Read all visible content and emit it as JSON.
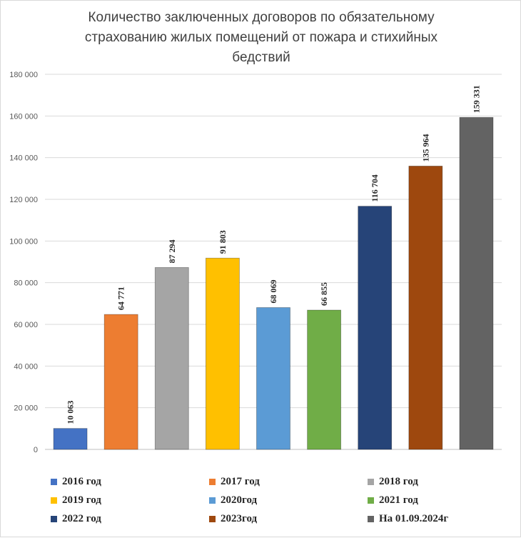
{
  "chart_data": {
    "type": "bar",
    "title_lines": [
      "Количество заключенных договоров по обязательному",
      "страхованию жилых помещений от пожара и стихийных",
      "бедствий"
    ],
    "categories": [
      "2016 год",
      "2017 год",
      "2018 год",
      "2019 год",
      "2020год",
      "2021 год",
      "2022 год",
      "2023год",
      "На  01.09.2024г"
    ],
    "values": [
      10063,
      64771,
      87294,
      91803,
      68069,
      66855,
      116704,
      135964,
      159331
    ],
    "value_labels": [
      "10 063",
      "64 771",
      "87 294",
      "91 803",
      "68 069",
      "66 855",
      "116 704",
      "135 964",
      "159 331"
    ],
    "colors": [
      "#4472c4",
      "#ed7d31",
      "#a5a5a5",
      "#ffc000",
      "#5b9bd5",
      "#70ad47",
      "#264478",
      "#9e480e",
      "#636363"
    ],
    "ylim": [
      0,
      180000
    ],
    "yticks": [
      "0",
      "20 000",
      "40 000",
      "60 000",
      "80 000",
      "100 000",
      "120 000",
      "140 000",
      "160 000",
      "180 000"
    ],
    "grid": true,
    "legend_position": "bottom"
  }
}
